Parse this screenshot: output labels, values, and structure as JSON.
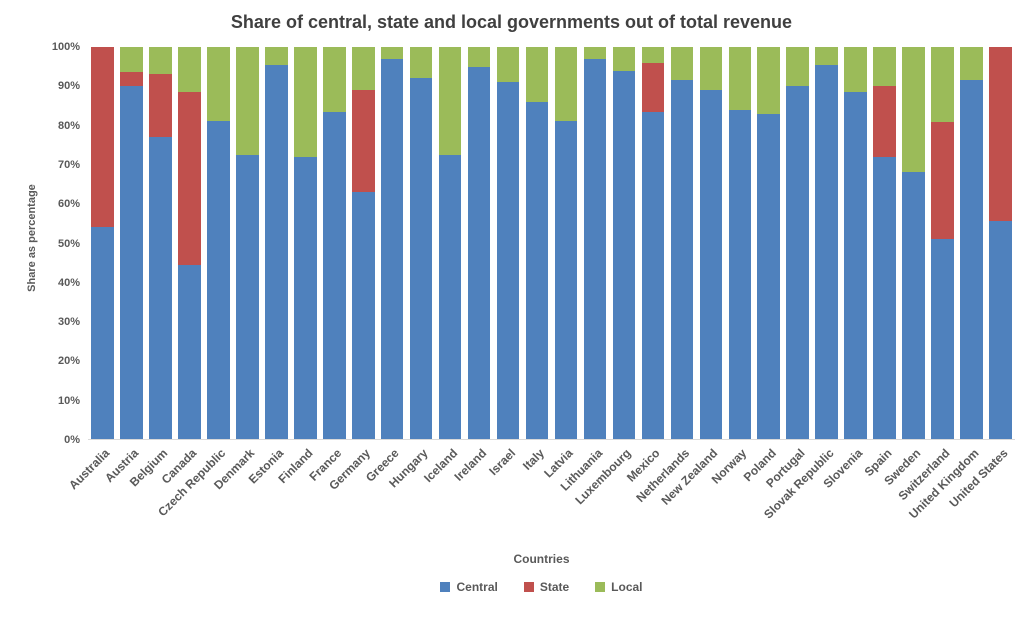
{
  "colors": {
    "background": "#FFFFFF",
    "title_text": "#404040",
    "axis_text": "#595959",
    "central": "#4F81BD",
    "state": "#C0504D",
    "local": "#9BBB59"
  },
  "chart_data": {
    "type": "bar",
    "stacked": true,
    "percent_stacked": true,
    "grid": false,
    "legend_position": "bottom",
    "title": "Share of central, state and local governments out of total revenue",
    "xlabel": "Countries",
    "ylabel": "Share as percentage",
    "ylim": [
      0,
      100
    ],
    "y_tick_labels": [
      "0%",
      "10%",
      "20%",
      "30%",
      "40%",
      "50%",
      "60%",
      "70%",
      "80%",
      "90%",
      "100%"
    ],
    "categories": [
      "Australia",
      "Austria",
      "Belgium",
      "Canada",
      "Czech Republic",
      "Denmark",
      "Estonia",
      "Finland",
      "France",
      "Germany",
      "Greece",
      "Hungary",
      "Iceland",
      "Ireland",
      "Israel",
      "Italy",
      "Latvia",
      "Lithuania",
      "Luxembourg",
      "Mexico",
      "Netherlands",
      "New Zealand",
      "Norway",
      "Poland",
      "Portugal",
      "Slovak Republic",
      "Slovenia",
      "Spain",
      "Sweden",
      "Switzerland",
      "United Kingdom",
      "United States"
    ],
    "series": [
      {
        "name": "Central",
        "color": "#4F81BD",
        "values": [
          54,
          90,
          77,
          44.5,
          81,
          72.5,
          95.5,
          72,
          83.5,
          63,
          97,
          92,
          72.5,
          95,
          91,
          86,
          81,
          97,
          94,
          83.5,
          91.5,
          89,
          84,
          83,
          90,
          95.5,
          88.5,
          72,
          68,
          51,
          91.5,
          55.5
        ]
      },
      {
        "name": "State",
        "color": "#C0504D",
        "values": [
          46,
          3.5,
          16,
          44,
          0,
          0,
          0,
          0,
          0,
          26,
          0,
          0,
          0,
          0,
          0,
          0,
          0,
          0,
          0,
          12.5,
          0,
          0,
          0,
          0,
          0,
          0,
          0,
          18,
          0,
          30,
          0,
          44.5
        ]
      },
      {
        "name": "Local",
        "color": "#9BBB59",
        "values": [
          0,
          6.5,
          7,
          11.5,
          19,
          27.5,
          4.5,
          28,
          16.5,
          11,
          3,
          8,
          27.5,
          5,
          9,
          14,
          19,
          3,
          6,
          4,
          8.5,
          11,
          16,
          17,
          10,
          4.5,
          11.5,
          10,
          32,
          19,
          8.5,
          0
        ]
      }
    ]
  }
}
